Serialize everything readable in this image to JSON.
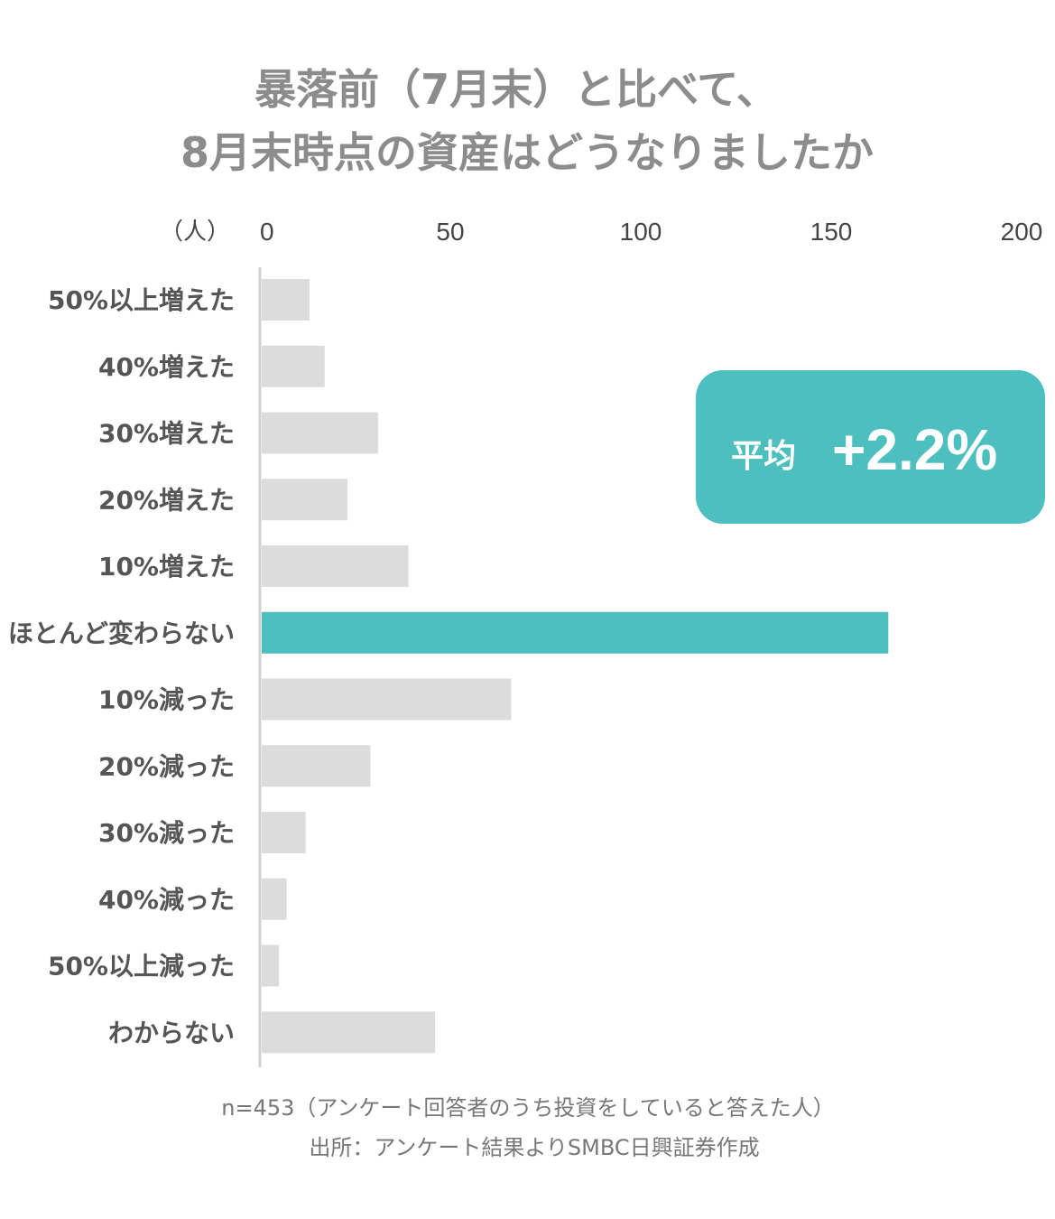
{
  "title_line1": "暴落前（7月末）と比べて、",
  "title_line2": "8月末時点の資産はどうなりましたか",
  "unit_label": "（人）",
  "callout": {
    "label": "平均",
    "value": "+2.2%",
    "color": "#4dbfbf"
  },
  "footnote_line1": "n=453（アンケート回答者のうち投資をしていると答えた人）",
  "footnote_line2": "出所：アンケート結果よりSMBC日興証券作成",
  "colors": {
    "bar": "#dcdcdc",
    "highlight": "#4dbfbf",
    "title": "#8c8c8c",
    "label": "#555555",
    "tick": "#444444",
    "footnote": "#777777",
    "axis": "#d2d2d2"
  },
  "chart_data": {
    "type": "bar",
    "orientation": "horizontal",
    "title": "暴落前（7月末）と比べて、8月末時点の資産はどうなりましたか",
    "xlabel": "（人）",
    "xlim": [
      0,
      200
    ],
    "ticks": [
      0,
      50,
      100,
      150,
      200
    ],
    "axis_position": "top",
    "grid": false,
    "categories": [
      "50%以上増えた",
      "40%増えた",
      "30%増えた",
      "20%増えた",
      "10%増えた",
      "ほとんど変わらない",
      "10%減った",
      "20%減った",
      "30%減った",
      "40%減った",
      "50%以上減った",
      "わからない"
    ],
    "values": [
      13,
      17,
      31,
      23,
      39,
      165,
      66,
      29,
      12,
      7,
      5,
      46
    ],
    "highlight": "ほとんど変わらない"
  }
}
